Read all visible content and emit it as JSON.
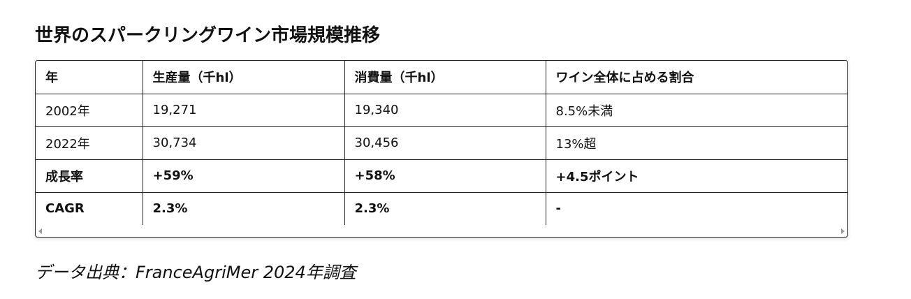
{
  "header": {
    "title": "世界のスパークリングワイン市場規模推移"
  },
  "table": {
    "columns": [
      "年",
      "生産量（千hl）",
      "消費量（千hl）",
      "ワイン全体に占める割合"
    ],
    "rows": [
      [
        "2002年",
        "19,271",
        "19,340",
        "8.5%未満"
      ],
      [
        "2022年",
        "30,734",
        "30,456",
        "13%超"
      ],
      [
        "成長率",
        "+59%",
        "+58%",
        "+4.5ポイント"
      ],
      [
        "CAGR",
        "2.3%",
        "2.3%",
        "-"
      ]
    ]
  },
  "caption": "データ出典：FranceAgriMer 2024年調査"
}
